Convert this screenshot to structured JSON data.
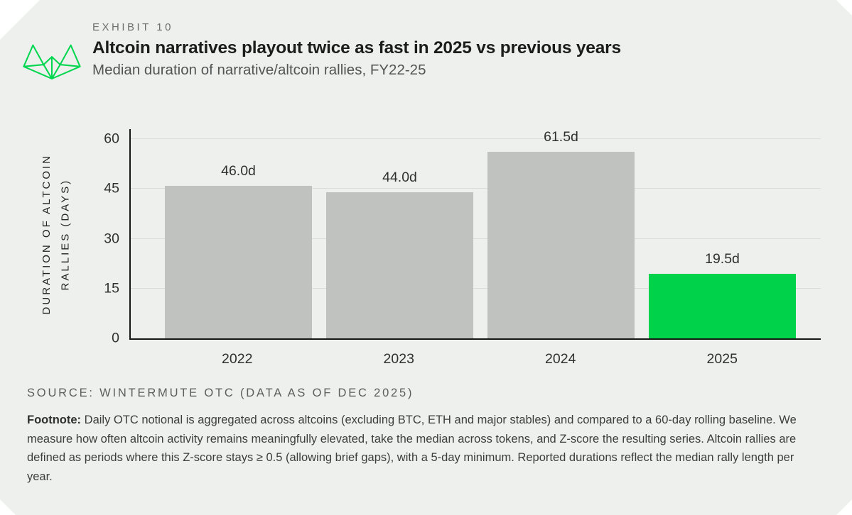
{
  "header": {
    "exhibit": "EXHIBIT 10",
    "title": "Altcoin narratives playout twice as fast in 2025 vs previous years",
    "subtitle": "Median duration of narrative/altcoin rallies, FY22-25"
  },
  "chart_data": {
    "type": "bar",
    "categories": [
      "2022",
      "2023",
      "2024",
      "2025"
    ],
    "values": [
      46.0,
      44.0,
      61.5,
      19.5
    ],
    "value_labels": [
      "46.0d",
      "44.0d",
      "61.5d",
      "19.5d"
    ],
    "bar_colors": [
      "#c0c2c0",
      "#c0c2c0",
      "#c0c2c0",
      "#00d24a"
    ],
    "title": "Altcoin narratives playout twice as fast in 2025 vs previous years",
    "xlabel": "",
    "ylabel": "DURATION OF ALTCOIN RALLIES (DAYS)",
    "ylabel_line1": "DURATION OF ALTCOIN",
    "ylabel_line2": "RALLIES (DAYS)",
    "yticks": [
      0,
      15,
      30,
      45,
      60
    ],
    "ylim": [
      0,
      63
    ],
    "grid": "horizontal",
    "legend": "none"
  },
  "source": "SOURCE: WINTERMUTE OTC (DATA AS OF DEC 2025)",
  "footnote": {
    "label": "Footnote:",
    "text": "Daily OTC notional is aggregated across altcoins (excluding BTC, ETH and major stables) and compared to a 60-day rolling baseline. We measure how often altcoin activity remains meaningfully elevated, take the median across tokens, and Z-score the resulting series. Altcoin rallies are defined as periods where this Z-score stays ≥ 0.5 (allowing brief gaps), with a 5-day minimum. Reported durations reflect the median rally length per year."
  },
  "colors": {
    "card_bg": "#eef0ed",
    "bar_gray": "#c0c2c0",
    "accent_green": "#00d24a",
    "logo_green": "#00d64f",
    "axis": "#151715",
    "gridline": "#dbddda"
  },
  "icons": {
    "logo": "wintermute-logo"
  }
}
